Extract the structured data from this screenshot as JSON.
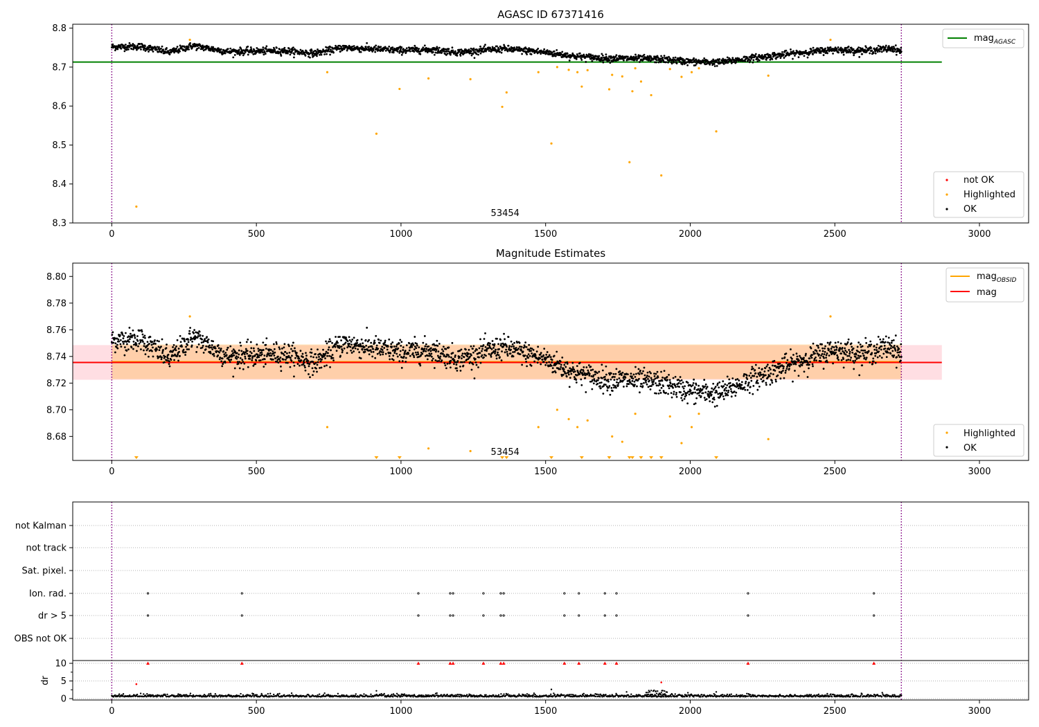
{
  "chart_data": [
    {
      "type": "scatter",
      "title": "AGASC ID 67371416",
      "xlim": [
        -135,
        3170
      ],
      "ylim": [
        8.3,
        8.81
      ],
      "xticks": [
        "0",
        "500",
        "1000",
        "1500",
        "2000",
        "2500",
        "3000"
      ],
      "xtick_values": [
        0,
        500,
        1000,
        1500,
        2000,
        2500,
        3000
      ],
      "yticks": [
        "8.3",
        "8.4",
        "8.5",
        "8.6",
        "8.7",
        "8.8"
      ],
      "ytick_values": [
        8.3,
        8.4,
        8.5,
        8.6,
        8.7,
        8.8
      ],
      "obs_label": "53454",
      "obs_label_x": 1360,
      "obs_bounds": [
        0,
        2730
      ],
      "mag_agasc": 8.713,
      "mag_agasc_xrange": [
        -135,
        2870
      ],
      "ok_trend": [
        [
          0,
          8.752
        ],
        [
          100,
          8.753
        ],
        [
          200,
          8.738
        ],
        [
          280,
          8.755
        ],
        [
          400,
          8.74
        ],
        [
          600,
          8.742
        ],
        [
          700,
          8.735
        ],
        [
          800,
          8.75
        ],
        [
          1000,
          8.743
        ],
        [
          1100,
          8.745
        ],
        [
          1200,
          8.738
        ],
        [
          1350,
          8.747
        ],
        [
          1500,
          8.738
        ],
        [
          1600,
          8.728
        ],
        [
          1700,
          8.723
        ],
        [
          1800,
          8.722
        ],
        [
          1900,
          8.72
        ],
        [
          2000,
          8.714
        ],
        [
          2100,
          8.712
        ],
        [
          2200,
          8.722
        ],
        [
          2300,
          8.73
        ],
        [
          2400,
          8.738
        ],
        [
          2500,
          8.745
        ],
        [
          2600,
          8.742
        ],
        [
          2700,
          8.748
        ],
        [
          2730,
          8.74
        ]
      ],
      "ok_scatter": 0.008,
      "highlighted": [
        [
          85,
          8.342
        ],
        [
          270,
          8.77
        ],
        [
          745,
          8.687
        ],
        [
          915,
          8.529
        ],
        [
          995,
          8.644
        ],
        [
          1095,
          8.671
        ],
        [
          1240,
          8.669
        ],
        [
          1350,
          8.598
        ],
        [
          1365,
          8.635
        ],
        [
          1475,
          8.687
        ],
        [
          1520,
          8.504
        ],
        [
          1540,
          8.7
        ],
        [
          1580,
          8.693
        ],
        [
          1610,
          8.687
        ],
        [
          1625,
          8.65
        ],
        [
          1645,
          8.692
        ],
        [
          1720,
          8.643
        ],
        [
          1730,
          8.68
        ],
        [
          1765,
          8.676
        ],
        [
          1790,
          8.456
        ],
        [
          1800,
          8.638
        ],
        [
          1810,
          8.697
        ],
        [
          1830,
          8.663
        ],
        [
          1865,
          8.628
        ],
        [
          1900,
          8.422
        ],
        [
          1930,
          8.695
        ],
        [
          1970,
          8.675
        ],
        [
          2005,
          8.687
        ],
        [
          2030,
          8.697
        ],
        [
          2090,
          8.535
        ],
        [
          2270,
          8.678
        ],
        [
          2485,
          8.77
        ]
      ],
      "legend_top": [
        {
          "label": "mag",
          "sub": "AGASC",
          "color": "#008000"
        }
      ],
      "legend_bottom": [
        {
          "label": "not OK",
          "color": "#ff0000"
        },
        {
          "label": "Highlighted",
          "color": "#ffa500"
        },
        {
          "label": "OK",
          "color": "#000000"
        }
      ]
    },
    {
      "type": "scatter",
      "title": "Magnitude Estimates",
      "xlim": [
        -135,
        3170
      ],
      "ylim": [
        8.662,
        8.81
      ],
      "xticks": [
        "0",
        "500",
        "1000",
        "1500",
        "2000",
        "2500",
        "3000"
      ],
      "xtick_values": [
        0,
        500,
        1000,
        1500,
        2000,
        2500,
        3000
      ],
      "yticks": [
        "8.68",
        "8.70",
        "8.72",
        "8.74",
        "8.76",
        "8.78",
        "8.80"
      ],
      "ytick_values": [
        8.68,
        8.7,
        8.72,
        8.74,
        8.76,
        8.78,
        8.8
      ],
      "obs_label": "53454",
      "obs_label_x": 1360,
      "obs_bounds": [
        0,
        2730
      ],
      "mag_line": 8.7355,
      "mag_band": [
        8.7225,
        8.7485
      ],
      "mag_obsid": 8.736,
      "mag_obsid_band": [
        8.723,
        8.749
      ],
      "highlighted_visible": [
        [
          270,
          8.77
        ],
        [
          745,
          8.687
        ],
        [
          1095,
          8.671
        ],
        [
          1240,
          8.669
        ],
        [
          1475,
          8.687
        ],
        [
          1540,
          8.7
        ],
        [
          1580,
          8.693
        ],
        [
          1610,
          8.687
        ],
        [
          1645,
          8.692
        ],
        [
          1730,
          8.68
        ],
        [
          1765,
          8.676
        ],
        [
          1810,
          8.697
        ],
        [
          1930,
          8.695
        ],
        [
          1970,
          8.675
        ],
        [
          2005,
          8.687
        ],
        [
          2030,
          8.697
        ],
        [
          2270,
          8.678
        ],
        [
          2485,
          8.77
        ]
      ],
      "highlighted_offscale_x": [
        85,
        915,
        995,
        1350,
        1365,
        1520,
        1625,
        1720,
        1790,
        1800,
        1830,
        1865,
        1900,
        2090
      ],
      "legend_top": [
        {
          "label": "mag",
          "sub": "OBSID",
          "color": "#ffa500"
        },
        {
          "label": "mag",
          "sub": "",
          "color": "#ff0000"
        }
      ],
      "legend_bottom": [
        {
          "label": "Highlighted",
          "color": "#ffa500"
        },
        {
          "label": "OK",
          "color": "#000000"
        }
      ]
    },
    {
      "type": "scatter",
      "title": "",
      "xlim": [
        -135,
        3170
      ],
      "xticks": [
        "0",
        "500",
        "1000",
        "1500",
        "2000",
        "2500",
        "3000"
      ],
      "xtick_values": [
        0,
        500,
        1000,
        1500,
        2000,
        2500,
        3000
      ],
      "flag_rows": [
        "not Kalman",
        "not track",
        "Sat. pixel.",
        "Ion. rad.",
        "dr > 5",
        "OBS not OK"
      ],
      "flag_times": [
        125,
        450,
        1060,
        1170,
        1180,
        1285,
        1345,
        1355,
        1565,
        1615,
        1705,
        1745,
        2200,
        2635
      ],
      "flagged_rows": [
        "Ion. rad.",
        "dr > 5"
      ],
      "obs_bounds": [
        0,
        2730
      ],
      "dr_ylim": [
        -0.3,
        10.5
      ],
      "dr_yticks": [
        "0",
        "5",
        "10"
      ],
      "dr_ytick_values": [
        0,
        5,
        10
      ],
      "dr_ylabel": "dr",
      "dr_capped": 10,
      "dr_outliers": [
        [
          85,
          4.1
        ],
        [
          1900,
          4.6
        ]
      ],
      "dr_spikes": [
        [
          915,
          2.2
        ],
        [
          1520,
          2.6
        ],
        [
          1780,
          1.9
        ],
        [
          1865,
          2.3
        ],
        [
          1880,
          2.0
        ],
        [
          1900,
          1.7
        ],
        [
          2090,
          1.9
        ]
      ],
      "dr_base": 0.5
    }
  ]
}
